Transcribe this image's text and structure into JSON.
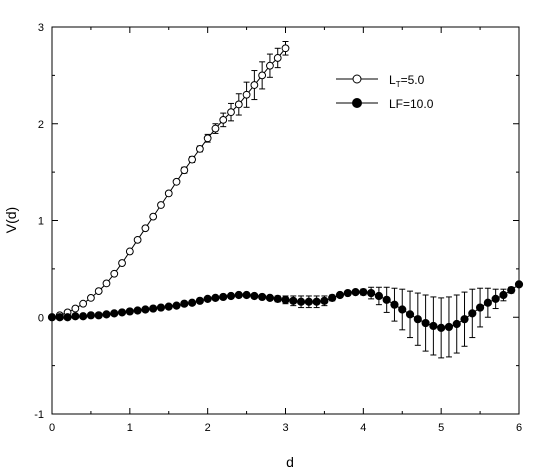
{
  "chart_data": {
    "type": "scatter",
    "title": "",
    "xlabel": "d",
    "ylabel": "V(d)",
    "xlim": [
      0,
      6
    ],
    "ylim": [
      -1,
      3
    ],
    "xticks": [
      "0",
      "1",
      "2",
      "3",
      "4",
      "5",
      "6"
    ],
    "yticks": [
      "-1",
      "0",
      "1",
      "2",
      "3"
    ],
    "grid": false,
    "legend_position": "top-right",
    "series": [
      {
        "name": "LT=5.0",
        "name_main": "L",
        "name_sub": "T",
        "name_rest": "=5.0",
        "marker": "open-circle",
        "x": [
          0.0,
          0.1,
          0.2,
          0.3,
          0.4,
          0.5,
          0.6,
          0.7,
          0.8,
          0.9,
          1.0,
          1.1,
          1.2,
          1.3,
          1.4,
          1.5,
          1.6,
          1.7,
          1.8,
          1.9,
          2.0,
          2.1,
          2.2,
          2.3,
          2.4,
          2.5,
          2.6,
          2.7,
          2.8,
          2.9,
          3.0
        ],
        "y": [
          0.0,
          0.02,
          0.05,
          0.09,
          0.14,
          0.2,
          0.27,
          0.35,
          0.45,
          0.56,
          0.68,
          0.8,
          0.92,
          1.04,
          1.16,
          1.28,
          1.4,
          1.52,
          1.63,
          1.74,
          1.85,
          1.95,
          2.04,
          2.12,
          2.2,
          2.3,
          2.4,
          2.5,
          2.6,
          2.68,
          2.78
        ],
        "err": [
          0,
          0,
          0,
          0,
          0,
          0,
          0,
          0,
          0,
          0,
          0.02,
          0.02,
          0.02,
          0.02,
          0.02,
          0.02,
          0.02,
          0.03,
          0.03,
          0.03,
          0.04,
          0.05,
          0.07,
          0.09,
          0.11,
          0.13,
          0.15,
          0.14,
          0.12,
          0.1,
          0.07
        ]
      },
      {
        "name": "LF=10.0",
        "marker": "filled-circle",
        "x": [
          0.0,
          0.1,
          0.2,
          0.3,
          0.4,
          0.5,
          0.6,
          0.7,
          0.8,
          0.9,
          1.0,
          1.1,
          1.2,
          1.3,
          1.4,
          1.5,
          1.6,
          1.7,
          1.8,
          1.9,
          2.0,
          2.1,
          2.2,
          2.3,
          2.4,
          2.5,
          2.6,
          2.7,
          2.8,
          2.9,
          3.0,
          3.1,
          3.2,
          3.3,
          3.4,
          3.5,
          3.6,
          3.7,
          3.8,
          3.9,
          4.0,
          4.1,
          4.2,
          4.3,
          4.4,
          4.5,
          4.6,
          4.7,
          4.8,
          4.9,
          5.0,
          5.1,
          5.2,
          5.3,
          5.4,
          5.5,
          5.6,
          5.7,
          5.8,
          5.9,
          6.0
        ],
        "y": [
          0.0,
          0.0,
          0.0,
          0.01,
          0.01,
          0.02,
          0.02,
          0.03,
          0.04,
          0.05,
          0.06,
          0.07,
          0.08,
          0.09,
          0.1,
          0.11,
          0.12,
          0.14,
          0.15,
          0.17,
          0.19,
          0.2,
          0.21,
          0.22,
          0.23,
          0.23,
          0.22,
          0.21,
          0.2,
          0.19,
          0.18,
          0.17,
          0.16,
          0.16,
          0.16,
          0.17,
          0.2,
          0.23,
          0.25,
          0.26,
          0.26,
          0.25,
          0.22,
          0.18,
          0.13,
          0.08,
          0.03,
          -0.02,
          -0.06,
          -0.09,
          -0.11,
          -0.1,
          -0.07,
          -0.02,
          0.04,
          0.1,
          0.15,
          0.19,
          0.23,
          0.28,
          0.34
        ],
        "err": [
          0,
          0,
          0,
          0,
          0,
          0,
          0,
          0,
          0,
          0,
          0,
          0,
          0,
          0,
          0,
          0,
          0,
          0,
          0,
          0,
          0.01,
          0.01,
          0.01,
          0.01,
          0.01,
          0.01,
          0.02,
          0.02,
          0.02,
          0.03,
          0.04,
          0.05,
          0.06,
          0.06,
          0.06,
          0.05,
          0.03,
          0.02,
          0.02,
          0.02,
          0.03,
          0.06,
          0.09,
          0.13,
          0.17,
          0.21,
          0.24,
          0.27,
          0.29,
          0.3,
          0.31,
          0.31,
          0.3,
          0.28,
          0.25,
          0.2,
          0.15,
          0.1,
          0.06,
          0.03,
          0.01
        ]
      }
    ]
  }
}
